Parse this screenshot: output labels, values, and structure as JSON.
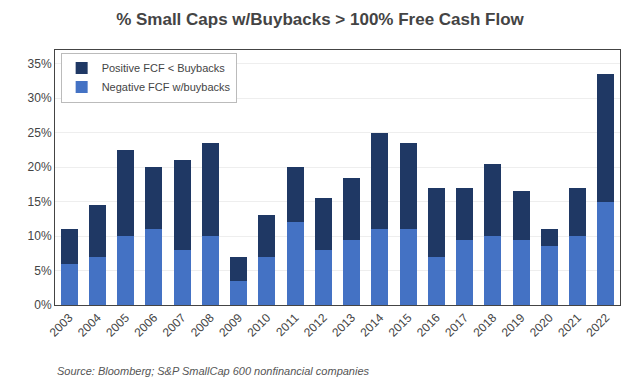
{
  "chart_data": {
    "type": "bar",
    "stacked": true,
    "title": "% Small Caps w/Buybacks > 100% Free Cash Flow",
    "categories": [
      "2003",
      "2004",
      "2005",
      "2006",
      "2007",
      "2008",
      "2009",
      "2010",
      "2011",
      "2012",
      "2013",
      "2014",
      "2015",
      "2016",
      "2017",
      "2018",
      "2019",
      "2020",
      "2021",
      "2022"
    ],
    "series": [
      {
        "name": "Negative FCF w/buybacks",
        "color": "#4472c4",
        "values": [
          6.0,
          7.0,
          10.0,
          11.0,
          8.0,
          10.0,
          3.5,
          7.0,
          12.0,
          8.0,
          9.5,
          11.0,
          11.0,
          7.0,
          9.5,
          10.0,
          9.5,
          8.5,
          10.0,
          15.0
        ]
      },
      {
        "name": "Positive FCF < Buybacks",
        "color": "#1f3864",
        "values": [
          5.0,
          7.5,
          12.5,
          9.0,
          13.0,
          13.5,
          3.5,
          6.0,
          8.0,
          7.5,
          9.0,
          14.0,
          12.5,
          10.0,
          7.5,
          10.5,
          7.0,
          2.5,
          7.0,
          18.5
        ]
      }
    ],
    "ylim": [
      0,
      37
    ],
    "yticks": [
      {
        "value": 0,
        "label": "0%"
      },
      {
        "value": 5,
        "label": "5%"
      },
      {
        "value": 10,
        "label": "10%"
      },
      {
        "value": 15,
        "label": "15%"
      },
      {
        "value": 20,
        "label": "20%"
      },
      {
        "value": 25,
        "label": "25%"
      },
      {
        "value": 30,
        "label": "30%"
      },
      {
        "value": 35,
        "label": "35%"
      }
    ],
    "grid": true,
    "legend": "upper left",
    "annotations": [
      "Source: Bloomberg; S&P SmallCap 600 nonfinancial companies"
    ]
  }
}
